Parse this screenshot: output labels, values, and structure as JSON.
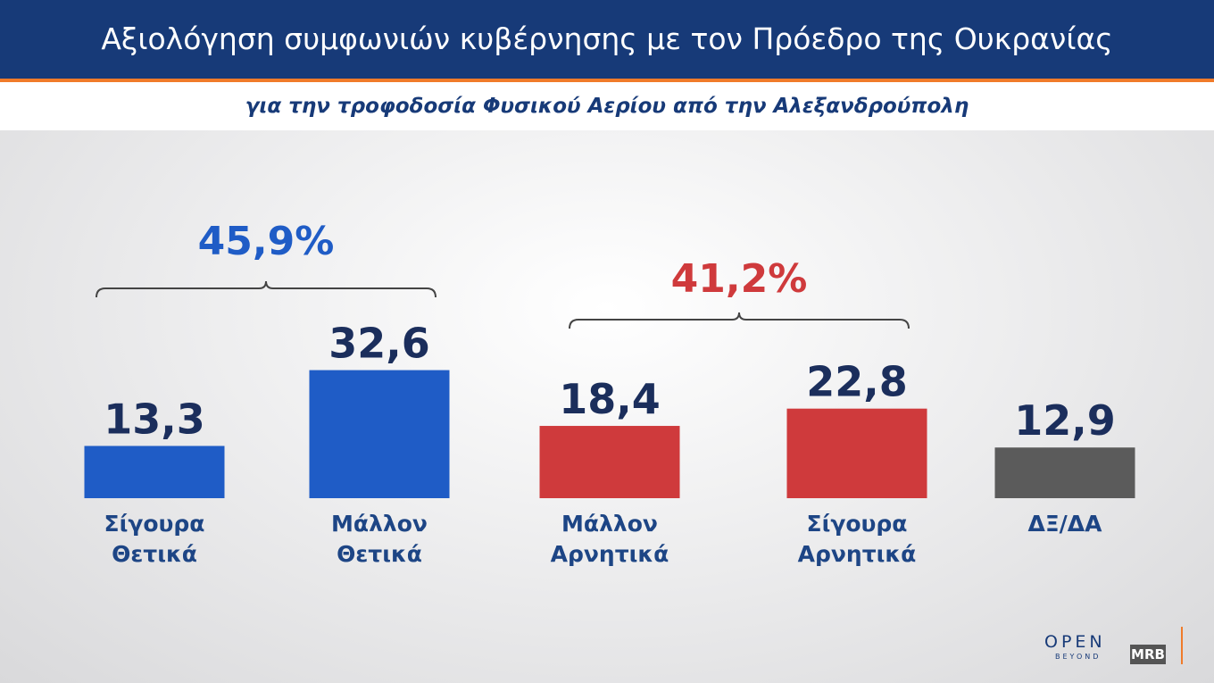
{
  "header": {
    "title": "Αξιολόγηση συμφωνιών κυβέρνησης με τον Πρόεδρο της Ουκρανίας",
    "subtitle": "για την τροφοδοσία Φυσικού Αερίου από την Αλεξανδρούπολη"
  },
  "chart_data": {
    "type": "bar",
    "categories": [
      "Σίγουρα Θετικά",
      "Μάλλον Θετικά",
      "Μάλλον Αρνητικά",
      "Σίγουρα Αρνητικά",
      "ΔΞ/ΔΑ"
    ],
    "values": [
      13.3,
      32.6,
      18.4,
      22.8,
      12.9
    ],
    "value_labels": [
      "13,3",
      "32,6",
      "18,4",
      "22,8",
      "12,9"
    ],
    "colors": [
      "#1f5cc6",
      "#1f5cc6",
      "#cf3a3c",
      "#cf3a3c",
      "#5b5b5b"
    ],
    "annotations": [
      {
        "text": "45,9%",
        "color": "#1f5cc6"
      },
      {
        "text": "41,2%",
        "color": "#cf3a3c"
      }
    ]
  },
  "branding": {
    "channel": "OPEN",
    "tagline": "BEYOND",
    "pollster": "MRB"
  }
}
